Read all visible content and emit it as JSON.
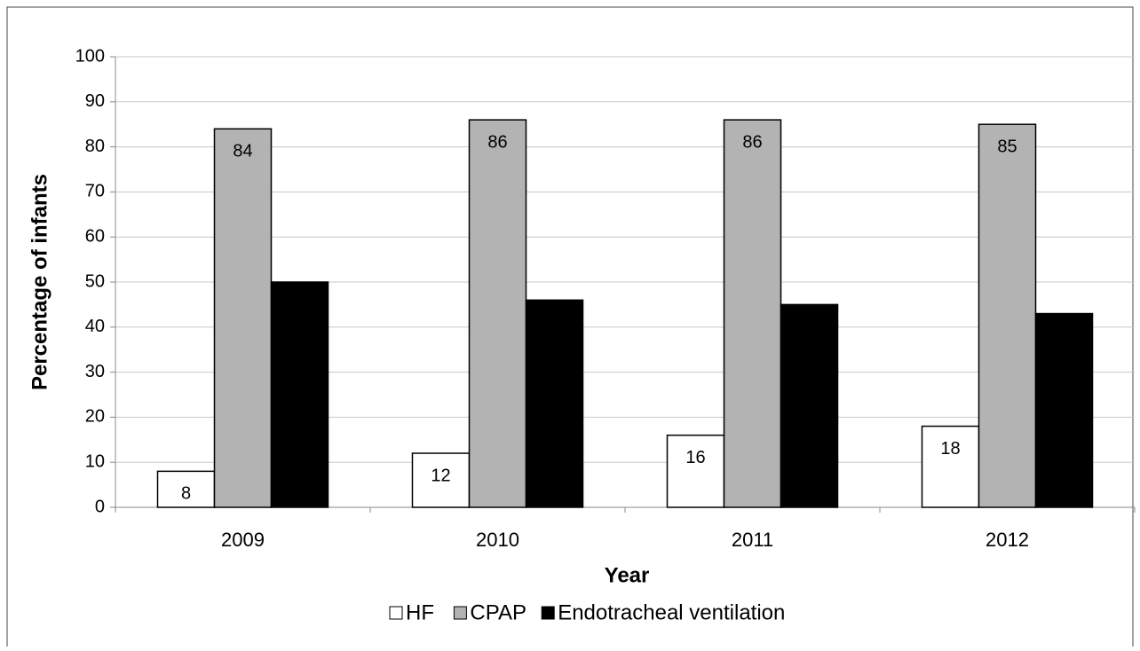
{
  "chart_data": {
    "type": "bar",
    "y_label": "Percentage of infants",
    "x_label": "Year",
    "categories": [
      "2009",
      "2010",
      "2011",
      "2012"
    ],
    "series": [
      {
        "name": "HF",
        "color": "#ffffff",
        "values": [
          8,
          12,
          16,
          18
        ]
      },
      {
        "name": "CPAP",
        "color": "#b3b3b3",
        "values": [
          84,
          86,
          86,
          85
        ]
      },
      {
        "name": "Endotracheal ventilation",
        "color": "#000000",
        "values": [
          50,
          46,
          45,
          43
        ]
      }
    ],
    "ylim": [
      0,
      100
    ],
    "yticks": [
      0,
      10,
      20,
      30,
      40,
      50,
      60,
      70,
      80,
      90,
      100
    ],
    "grid": true,
    "legend": "bottom"
  }
}
